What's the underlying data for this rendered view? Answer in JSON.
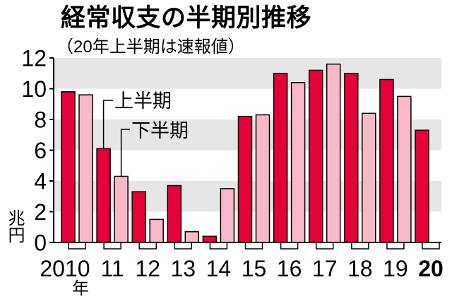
{
  "chart_data": {
    "type": "bar",
    "title": "経常収支の半期別推移",
    "subtitle": "（20年上半期は速報値）",
    "categories": [
      "2010",
      "11",
      "12",
      "13",
      "14",
      "15",
      "16",
      "17",
      "18",
      "19",
      "20"
    ],
    "xlabel": "年",
    "ylabel": "兆円",
    "ylim": [
      0,
      12
    ],
    "yticks": [
      0,
      2,
      4,
      6,
      8,
      10,
      12
    ],
    "grid": true,
    "legend_position": "top-left",
    "band_color": "#e6e6e6",
    "outline_color": "#000000",
    "series": [
      {
        "name": "上半期",
        "color": "#e5003a",
        "values": [
          9.8,
          6.1,
          3.3,
          3.7,
          0.4,
          8.2,
          11.0,
          11.2,
          11.0,
          10.6,
          7.3
        ]
      },
      {
        "name": "下半期",
        "color": "#f7b8c8",
        "values": [
          9.6,
          4.3,
          1.5,
          0.7,
          3.5,
          8.3,
          10.4,
          11.6,
          8.4,
          9.5,
          null
        ]
      }
    ]
  }
}
